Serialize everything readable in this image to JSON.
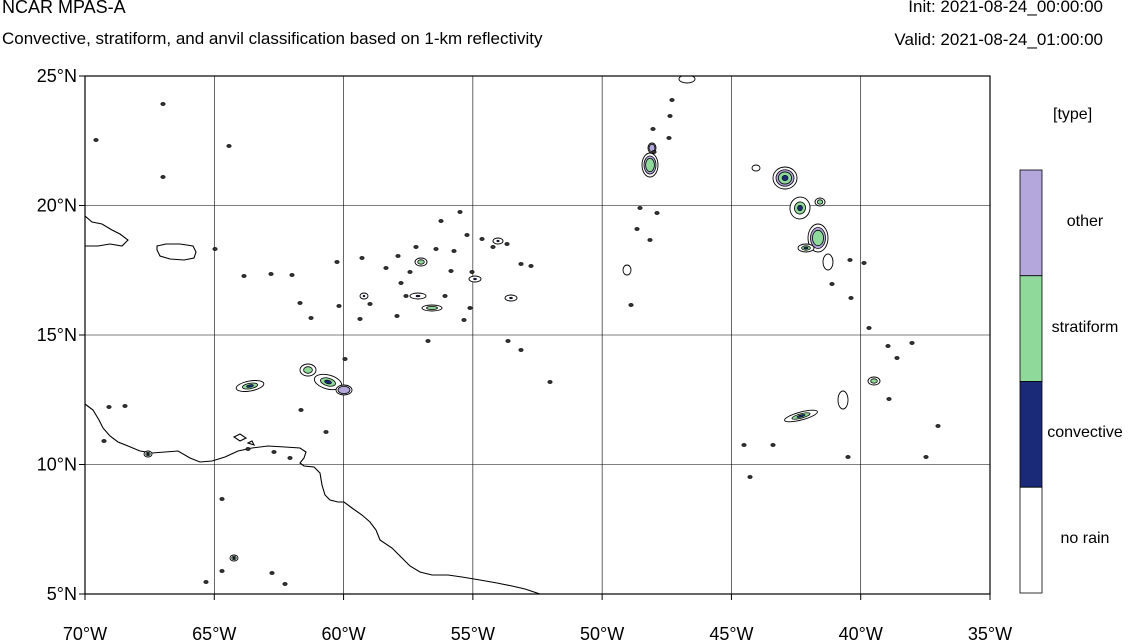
{
  "header": {
    "title": "NCAR MPAS-A",
    "subtitle": "Convective, stratiform, and anvil classification based on 1-km reflectivity",
    "init": "Init: 2021-08-24_00:00:00",
    "valid": "Valid: 2021-08-24_01:00:00"
  },
  "map": {
    "lon_range": [
      -70,
      -35
    ],
    "lat_range": [
      5,
      25
    ],
    "grid": true,
    "x_ticks": [
      {
        "lon": -70,
        "label": "70°W"
      },
      {
        "lon": -65,
        "label": "65°W"
      },
      {
        "lon": -60,
        "label": "60°W"
      },
      {
        "lon": -55,
        "label": "55°W"
      },
      {
        "lon": -50,
        "label": "50°W"
      },
      {
        "lon": -45,
        "label": "45°W"
      },
      {
        "lon": -40,
        "label": "40°W"
      },
      {
        "lon": -35,
        "label": "35°W"
      }
    ],
    "y_ticks": [
      {
        "lat": 25,
        "label": "25°N"
      },
      {
        "lat": 20,
        "label": "20°N"
      },
      {
        "lat": 15,
        "label": "15°N"
      },
      {
        "lat": 10,
        "label": "10°N"
      },
      {
        "lat": 5,
        "label": "5°N"
      }
    ]
  },
  "legend": {
    "title": "[type]",
    "entries": [
      {
        "label": "other",
        "color": "#b4a7db"
      },
      {
        "label": "stratiform",
        "color": "#8fd99a"
      },
      {
        "label": "convective",
        "color": "#1a2a78"
      },
      {
        "label": "no rain",
        "color": "#ffffff"
      }
    ]
  },
  "colors": {
    "other": "#b4a7db",
    "stratiform": "#8fd99a",
    "convective": "#1a2a78",
    "no_rain": "#ffffff"
  }
}
